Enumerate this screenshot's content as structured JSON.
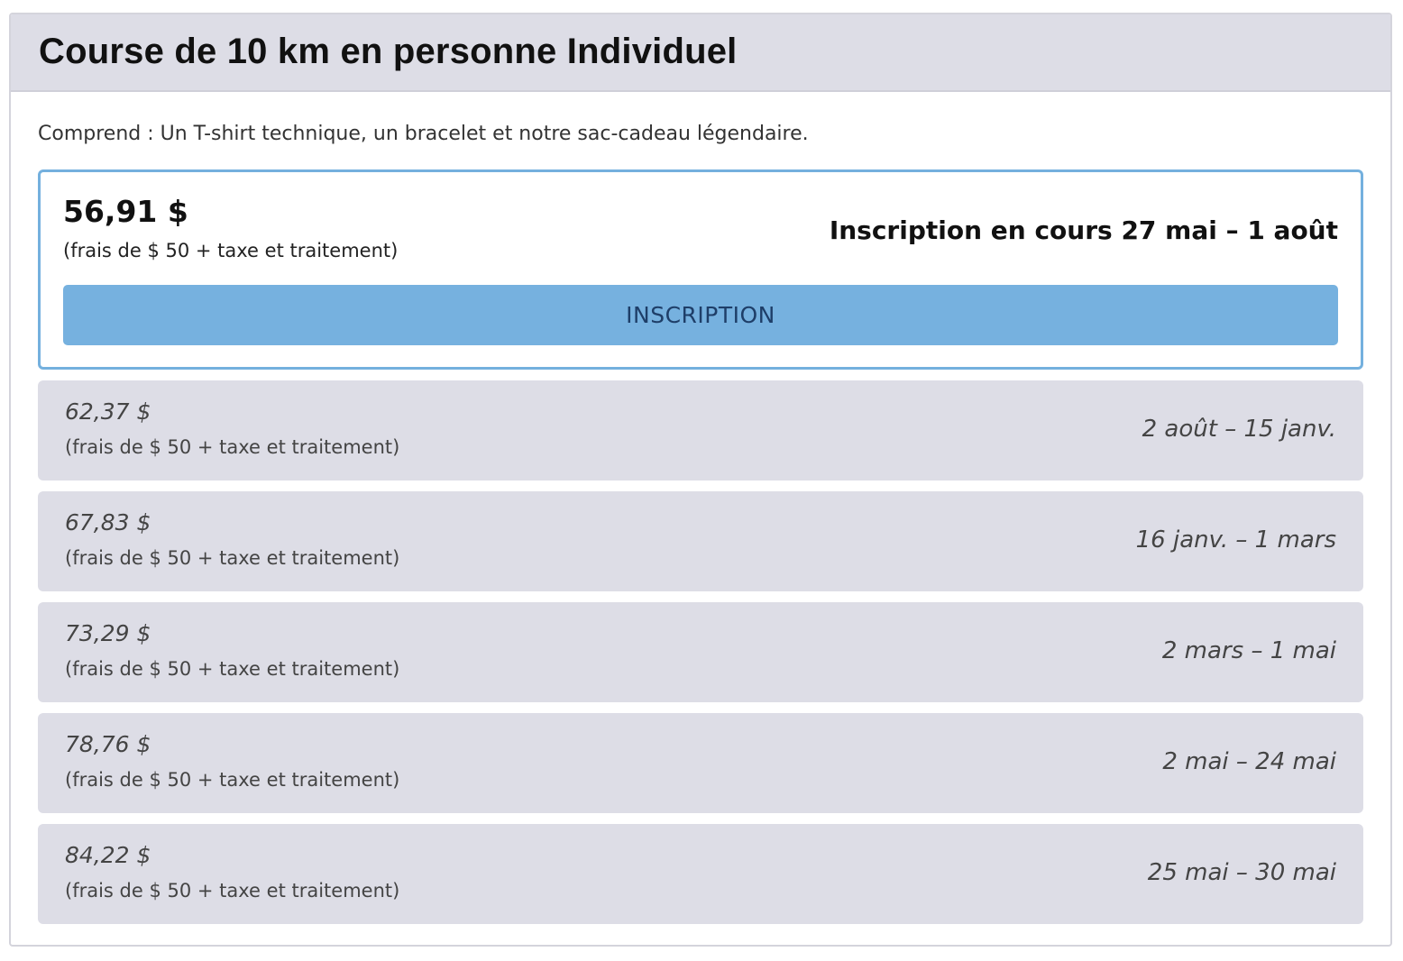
{
  "card": {
    "title": "Course de 10 km en personne Individuel",
    "includes": "Comprend : Un T-shirt technique, un bracelet et notre sac-cadeau légendaire."
  },
  "active_tier": {
    "price": "56,91 $",
    "fee": "(frais de $ 50 + taxe et traitement)",
    "period": "Inscription en cours 27 mai – 1 août",
    "button_label": "INSCRIPTION"
  },
  "tiers": [
    {
      "price": "62,37 $",
      "fee": "(frais de $ 50 + taxe et traitement)",
      "period": "2 août – 15 janv."
    },
    {
      "price": "67,83 $",
      "fee": "(frais de $ 50 + taxe et traitement)",
      "period": "16 janv. – 1 mars"
    },
    {
      "price": "73,29 $",
      "fee": "(frais de $ 50 + taxe et traitement)",
      "period": "2 mars – 1 mai"
    },
    {
      "price": "78,76 $",
      "fee": "(frais de $ 50 + taxe et traitement)",
      "period": "2 mai – 24 mai"
    },
    {
      "price": "84,22 $",
      "fee": "(frais de $ 50 + taxe et traitement)",
      "period": "25 mai – 30 mai"
    }
  ],
  "colors": {
    "accent": "#76b1df",
    "button_text": "#1e3e68",
    "tier_background": "#dddde6"
  }
}
